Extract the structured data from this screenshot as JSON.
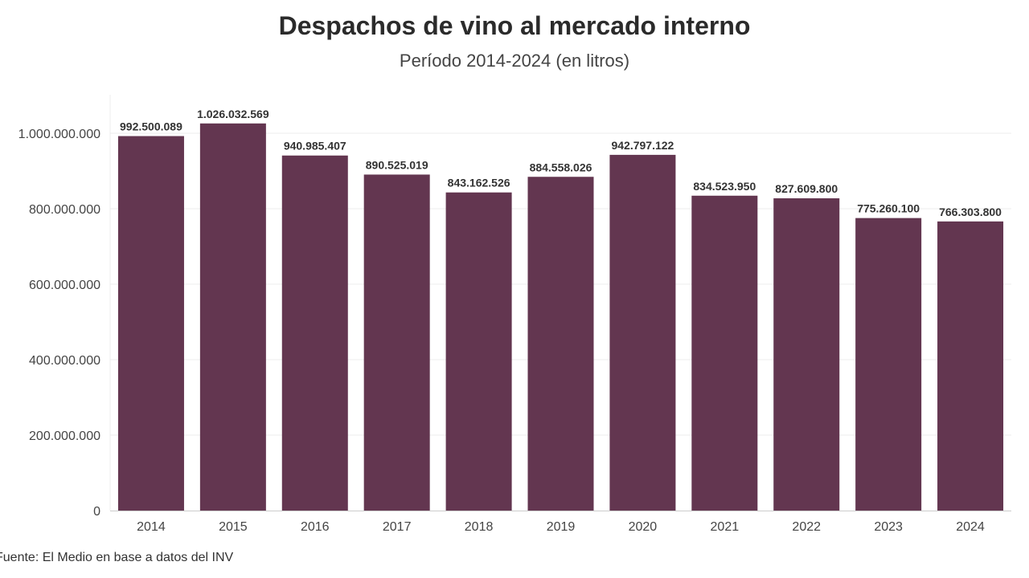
{
  "chart": {
    "title": "Despachos de vino al mercado interno",
    "subtitle": "Período 2014-2024 (en litros)",
    "source": "Fuente: El Medio en base a datos del INV"
  },
  "chart_data": {
    "type": "bar",
    "title": "Despachos de vino al mercado interno",
    "subtitle": "Período 2014-2024 (en litros)",
    "xlabel": "",
    "ylabel": "",
    "ylim": [
      0,
      1100000000
    ],
    "grid": true,
    "categories": [
      "2014",
      "2015",
      "2016",
      "2017",
      "2018",
      "2019",
      "2020",
      "2021",
      "2022",
      "2023",
      "2024"
    ],
    "values": [
      992500089,
      1026032569,
      940985407,
      890525019,
      843162526,
      884558026,
      942797122,
      834523950,
      827609800,
      775260100,
      766303800
    ],
    "value_labels": [
      "992.500.089",
      "1.026.032.569",
      "940.985.407",
      "890.525.019",
      "843.162.526",
      "884.558.026",
      "942.797.122",
      "834.523.950",
      "827.609.800",
      "775.260.100",
      "766.303.800"
    ],
    "y_ticks": [
      0,
      200000000,
      400000000,
      600000000,
      800000000,
      1000000000
    ],
    "y_tick_labels": [
      "0",
      "200.000.000",
      "400.000.000",
      "600.000.000",
      "800.000.000",
      "1.000.000.000"
    ],
    "colors": {
      "bar": "#633650",
      "grid": "#ececec",
      "axis": "#cccccc"
    }
  }
}
